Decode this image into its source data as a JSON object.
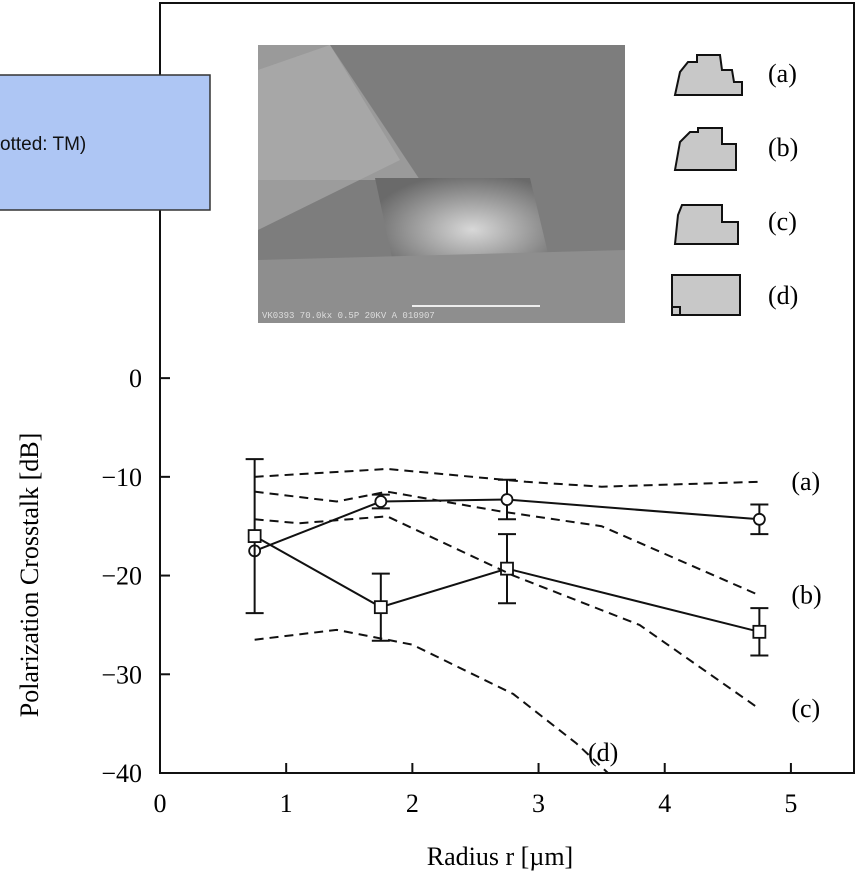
{
  "chart_data": {
    "type": "line",
    "x_label": "Radius r  [µm]",
    "y_label": "Polarization Crosstalk  [dB]",
    "xlim": [
      0,
      5.5
    ],
    "ylim": [
      -40,
      38
    ],
    "xticks": [
      0,
      1,
      2,
      3,
      4,
      5
    ],
    "yticks": [
      0,
      {
        "value": -10,
        "label": "−10"
      },
      {
        "value": -20,
        "label": "−20"
      },
      {
        "value": -30,
        "label": "−30"
      },
      {
        "value": -40,
        "label": "−40"
      }
    ],
    "series": [
      {
        "style": "solid",
        "marker": "circle",
        "color": "#111111",
        "x": [
          0.75,
          1.75,
          2.75,
          4.75
        ],
        "values": [
          -17.5,
          -12.5,
          -12.3,
          -14.3
        ],
        "errors": [
          null,
          0.7,
          2,
          1.5
        ]
      },
      {
        "style": "solid",
        "marker": "square",
        "color": "#111111",
        "x": [
          0.75,
          1.75,
          2.75,
          4.75
        ],
        "values": [
          -16,
          -23.2,
          -19.3,
          -25.7
        ],
        "errors": [
          7.8,
          3.4,
          3.5,
          2.4
        ]
      },
      {
        "style": "dashed",
        "label": "(a)",
        "color": "#111111",
        "x": [
          0.75,
          1.8,
          2.9,
          3.5,
          4.75
        ],
        "values": [
          -10,
          -9.2,
          -10.5,
          -11,
          -10.5
        ]
      },
      {
        "style": "dashed",
        "label": "(b)",
        "color": "#111111",
        "x": [
          0.75,
          1.4,
          1.8,
          2.7,
          3.5,
          4.75
        ],
        "values": [
          -11.5,
          -12.5,
          -11.5,
          -13.5,
          -15,
          -22
        ]
      },
      {
        "style": "dashed",
        "label": "(c)",
        "color": "#111111",
        "x": [
          0.75,
          1.1,
          1.8,
          2.8,
          3.8,
          4.75
        ],
        "values": [
          -14.3,
          -14.7,
          -14,
          -20,
          -25,
          -33.5
        ]
      },
      {
        "style": "dashed",
        "label": "(d)",
        "color": "#111111",
        "x": [
          0.75,
          1.4,
          2,
          2.8,
          3.3,
          3.55
        ],
        "values": [
          -26.5,
          -25.5,
          -27,
          -32,
          -37,
          -40
        ]
      }
    ]
  },
  "inset": {
    "legend": [
      "(a)",
      "(b)",
      "(c)",
      "(d)"
    ],
    "caption": "VK0393 70.0kx 0.5P 20KV A 010907"
  },
  "overlay": {
    "text": "otted: TM)"
  }
}
